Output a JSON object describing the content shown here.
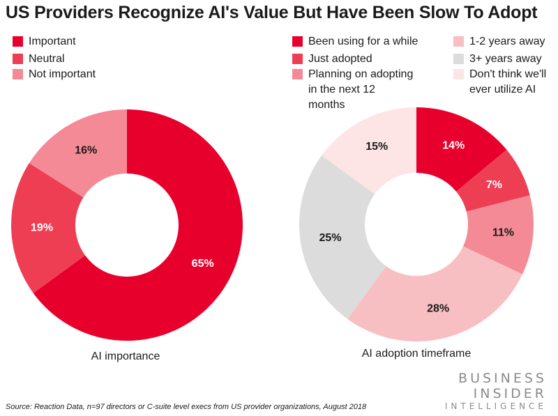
{
  "title": "US Providers Recognize AI's Value But Have Been Slow To Adopt",
  "source": "Source: Reaction Data, n=97 directors or C-suite level execs from US provider organizations, August 2018",
  "logo": {
    "line1": "BUSINESS",
    "line2": "INSIDER",
    "line3": "INTELLIGENCE"
  },
  "chart_data": [
    {
      "type": "pie",
      "donut": true,
      "title": "AI importance",
      "categories": [
        "Important",
        "Neutral",
        "Not important"
      ],
      "values": [
        65,
        19,
        16
      ],
      "labels": [
        "65%",
        "19%",
        "16%"
      ],
      "colors": [
        "#e8002d",
        "#ee3e54",
        "#f48a95"
      ],
      "label_colors": [
        "#ffffff",
        "#ffffff",
        "#1a1a1a"
      ]
    },
    {
      "type": "pie",
      "donut": true,
      "title": "AI adoption timeframe",
      "categories": [
        "Been using for a while",
        "Just adopted",
        "Planning on adopting in the next 12 months",
        "1-2 years away",
        "3+ years away",
        "Don't think we'll ever utilize AI"
      ],
      "legend_lines": [
        [
          "Been using for a while"
        ],
        [
          "Just adopted"
        ],
        [
          "Planning on adopting",
          "in the next 12",
          "months"
        ],
        [
          "1-2 years away"
        ],
        [
          "3+ years away"
        ],
        [
          "Don't think we'll",
          "ever utilize AI"
        ]
      ],
      "values": [
        14,
        7,
        11,
        28,
        25,
        15
      ],
      "labels": [
        "14%",
        "7%",
        "11%",
        "28%",
        "25%",
        "15%"
      ],
      "colors": [
        "#e8002d",
        "#ee3e54",
        "#f48a95",
        "#f8bfc2",
        "#dcdcdc",
        "#fde4e5"
      ],
      "label_colors": [
        "#ffffff",
        "#ffffff",
        "#1a1a1a",
        "#1a1a1a",
        "#1a1a1a",
        "#1a1a1a"
      ]
    }
  ]
}
